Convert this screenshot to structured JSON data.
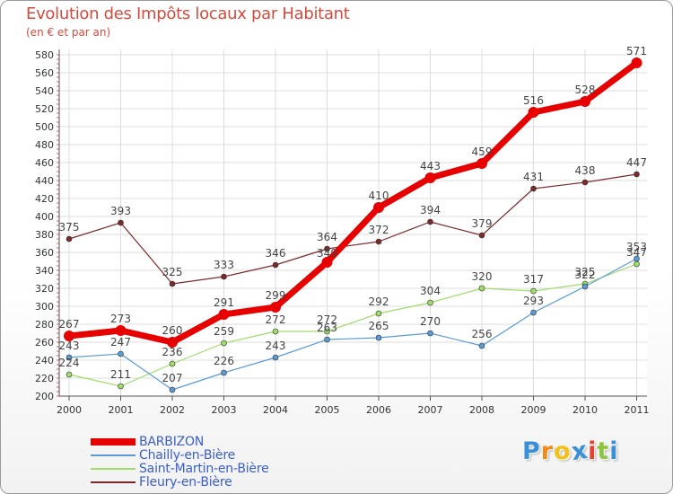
{
  "title": "Evolution des Impôts locaux par Habitant",
  "subtitle": "(en € et par an)",
  "logo": {
    "letters": [
      "P",
      "r",
      "o",
      "x",
      "i",
      "t",
      "i"
    ],
    "colors": [
      "#3a8fd6",
      "#f28a1a",
      "#f2c21a",
      "#3a8fd6",
      "#e8402f",
      "#8cc63f",
      "#3a8fd6"
    ]
  },
  "chart_data": {
    "type": "line",
    "x": [
      "2000",
      "2001",
      "2002",
      "2003",
      "2004",
      "2005",
      "2006",
      "2007",
      "2008",
      "2009",
      "2010",
      "2011"
    ],
    "ylim": [
      200,
      580
    ],
    "yticks": [
      200,
      220,
      240,
      260,
      280,
      300,
      320,
      340,
      360,
      380,
      400,
      420,
      440,
      460,
      480,
      500,
      520,
      540,
      560,
      580
    ],
    "grid": true,
    "legend_position": "bottom-left",
    "series": [
      {
        "name": "BARBIZON",
        "color": "#e60000",
        "values": [
          267,
          273,
          260,
          291,
          299,
          349,
          410,
          443,
          459,
          516,
          528,
          571
        ],
        "labels": [
          "267",
          "273",
          "260",
          "291",
          "299",
          "",
          "410",
          "443",
          "459",
          "516",
          "528",
          "571"
        ]
      },
      {
        "name": "Chailly-en-Bière",
        "color": "#5a9bd4",
        "values": [
          243,
          247,
          207,
          226,
          243,
          263,
          265,
          270,
          256,
          293,
          322,
          353
        ],
        "labels": [
          "243",
          "247",
          "207",
          "226",
          "243",
          "263",
          "265",
          "270",
          "256",
          "293",
          "322",
          "353"
        ]
      },
      {
        "name": "Saint-Martin-en-Bière",
        "color": "#9fdc6a",
        "values": [
          224,
          211,
          236,
          259,
          272,
          272,
          292,
          304,
          320,
          317,
          325,
          347
        ],
        "labels": [
          "224",
          "211",
          "236",
          "259",
          "272",
          "272",
          "292",
          "304",
          "320",
          "317",
          "325",
          "347"
        ]
      },
      {
        "name": "Fleury-en-Bière",
        "color": "#7a2a2a",
        "values": [
          375,
          393,
          325,
          333,
          346,
          364,
          372,
          394,
          379,
          431,
          438,
          447
        ],
        "labels": [
          "375",
          "393",
          "325",
          "333",
          "346",
          "364",
          "372",
          "394",
          "379",
          "431",
          "438",
          "447"
        ]
      }
    ],
    "extra_labels": [
      {
        "x": "2005",
        "text": "349"
      }
    ]
  }
}
